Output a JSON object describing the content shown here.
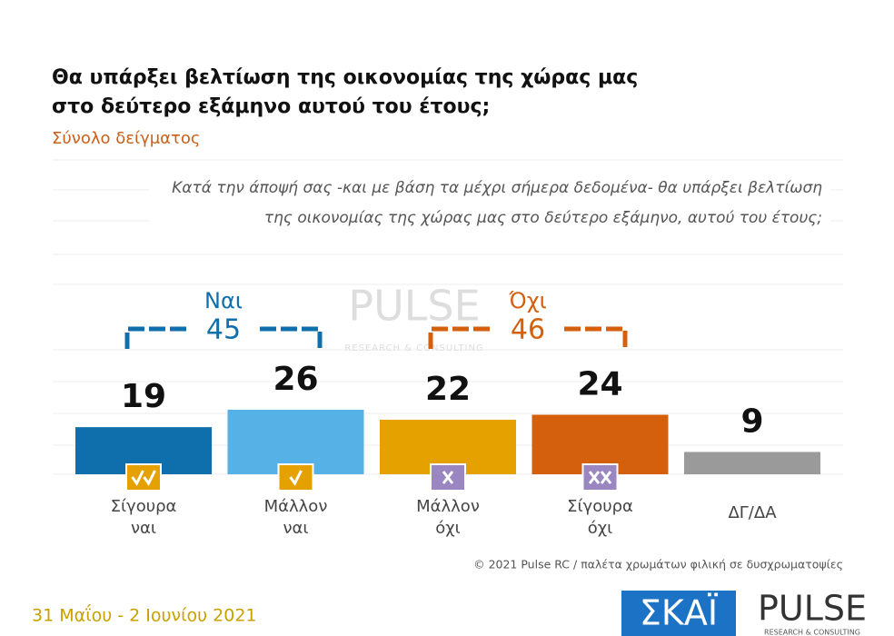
{
  "chart_data": {
    "type": "bar",
    "title": [
      "Θα υπάρξει βελτίωση της οικονομίας της χώρας μας",
      "στο δεύτερο εξάμηνο αυτού του έτους;"
    ],
    "subtitle": "Σύνολο δείγματος",
    "question": [
      "Κατά την άποψή σας -και με βάση τα μέχρι σήμερα δεδομένα- θα υπάρξει βελτίωση",
      "της οικονομίας της χώρας μας στο δεύτερο εξάμηνο, αυτού του έτους;"
    ],
    "categories": [
      [
        "Σίγουρα",
        "ναι"
      ],
      [
        "Μάλλον",
        "ναι"
      ],
      [
        "Μάλλον",
        "όχι"
      ],
      [
        "Σίγουρα",
        "όχι"
      ],
      [
        "ΔΓ/ΔΑ"
      ]
    ],
    "values": [
      19,
      26,
      22,
      24,
      9
    ],
    "colors": [
      "#0f6fad",
      "#56b1e7",
      "#e4a100",
      "#d45f0c",
      "#9a9a9a"
    ],
    "groups": [
      {
        "label": "Ναι",
        "total": 45,
        "color": "#0f6fad"
      },
      {
        "label": "Όχι",
        "total": 46,
        "color": "#d45f0c"
      }
    ],
    "copyright": "© 2021 Pulse RC   /   παλέτα χρωμάτων φιλική σε δυσχρωματοψίες",
    "date": "31 Μαΐου - 2 Ιουνίου 2021",
    "logos": {
      "skai": "ΣΚΑΪ",
      "pulse": "PULSE",
      "pulse_sub": "RESEARCH & CONSULTING"
    }
  }
}
